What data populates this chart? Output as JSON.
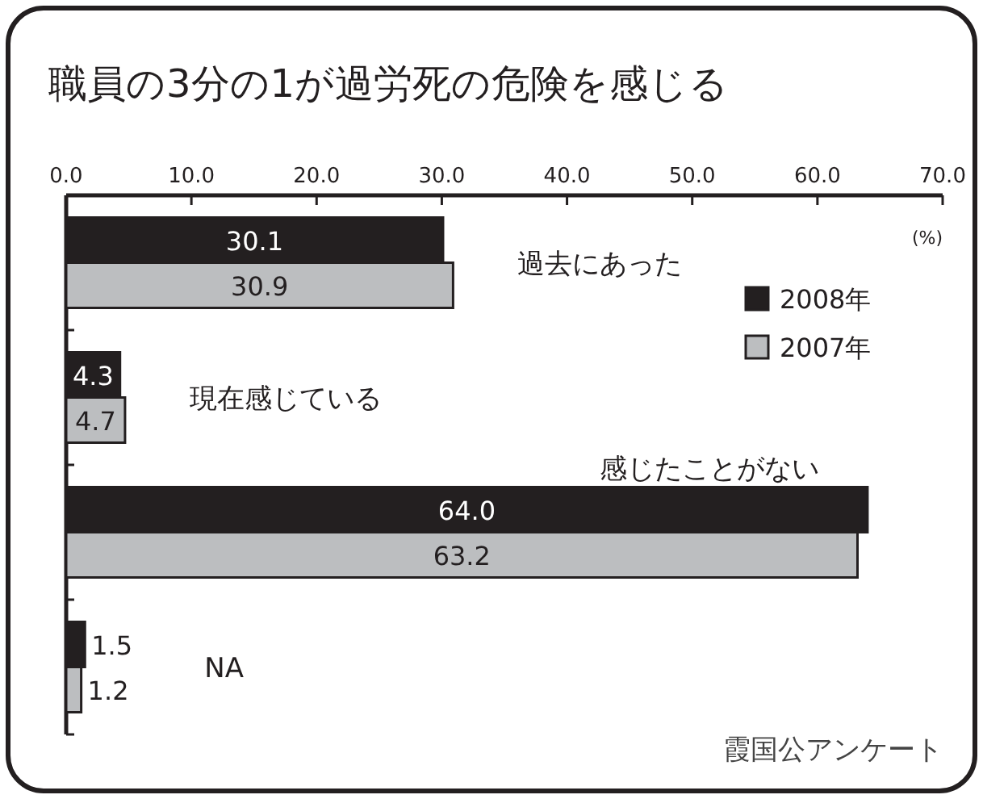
{
  "chart_data": {
    "type": "bar",
    "orientation": "horizontal",
    "title": "職員の3分の1が過労死の危険を感じる",
    "xlabel": "(%)",
    "categories": [
      "過去にあった",
      "現在感じている",
      "感じたことがない",
      "NA"
    ],
    "series": [
      {
        "name": "2008年",
        "color": "#231f20",
        "values": [
          30.1,
          4.3,
          64.0,
          1.5
        ],
        "value_labels": [
          "30.1",
          "4.3",
          "64.0",
          "1.5"
        ]
      },
      {
        "name": "2007年",
        "color": "#bcbec0",
        "values": [
          30.9,
          4.7,
          63.2,
          1.2
        ],
        "value_labels": [
          "30.9",
          "4.7",
          "63.2",
          "1.2"
        ]
      }
    ],
    "xlim": [
      0,
      70
    ],
    "xticks": [
      {
        "value": 0,
        "label": "0.0"
      },
      {
        "value": 10,
        "label": "10.0"
      },
      {
        "value": 20,
        "label": "20.0"
      },
      {
        "value": 30,
        "label": "30.0"
      },
      {
        "value": 40,
        "label": "40.0"
      },
      {
        "value": 50,
        "label": "50.0"
      },
      {
        "value": 60,
        "label": "60.0"
      },
      {
        "value": 70,
        "label": "70.0"
      }
    ],
    "legend": "top right",
    "annotations": [
      "霞国公アンケート"
    ]
  }
}
